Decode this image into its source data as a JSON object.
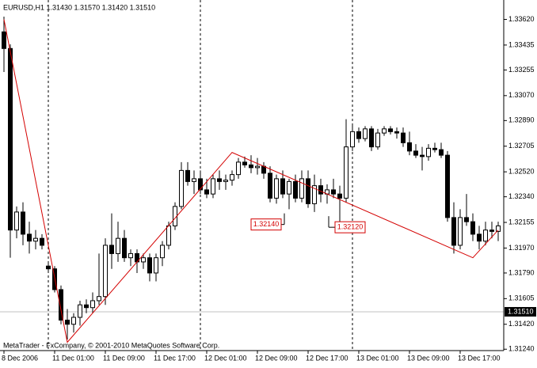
{
  "chart_data": {
    "type": "candlestick",
    "title": "EURUSD,H1  1.31430 1.31570 1.31420 1.31510",
    "footer": "MetaTrader - FxCompany, © 2001-2010 MetaQuotes Software Corp.",
    "categories": [
      "8 Dec 2006",
      null,
      null,
      null,
      null,
      null,
      null,
      null,
      "11 Dec 01:00",
      null,
      null,
      null,
      null,
      null,
      null,
      null,
      "11 Dec 09:00",
      null,
      null,
      null,
      null,
      null,
      null,
      null,
      "11 Dec 17:00",
      null,
      null,
      null,
      null,
      null,
      null,
      null,
      "12 Dec 01:00",
      null,
      null,
      null,
      null,
      null,
      null,
      null,
      "12 Dec 09:00",
      null,
      null,
      null,
      null,
      null,
      null,
      null,
      "12 Dec 17:00",
      null,
      null,
      null,
      null,
      null,
      null,
      null,
      "13 Dec 01:00",
      null,
      null,
      null,
      null,
      null,
      null,
      null,
      "13 Dec 09:00",
      null,
      null,
      null,
      null,
      null,
      null,
      null,
      "13 Dec 17:00",
      null,
      null,
      null,
      null,
      null,
      null
    ],
    "open": [
      1.3353,
      1.3341,
      1.321,
      1.3223,
      1.3207,
      1.3202,
      1.3204,
      1.3184,
      1.3182,
      1.3167,
      1.3145,
      1.3142,
      1.3147,
      1.3156,
      1.3154,
      1.3159,
      1.3162,
      1.3199,
      1.3193,
      1.3204,
      1.319,
      1.3193,
      1.3187,
      1.319,
      1.3179,
      1.319,
      1.3199,
      1.3213,
      1.3227,
      1.3253,
      1.3245,
      1.3247,
      1.3239,
      1.3236,
      1.3247,
      1.3245,
      1.3246,
      1.325,
      1.3259,
      1.3257,
      1.3255,
      1.3256,
      1.3251,
      1.3233,
      1.3247,
      1.3236,
      1.3245,
      1.3233,
      1.3247,
      1.3229,
      1.3242,
      1.3236,
      1.3239,
      1.3236,
      1.3233,
      1.327,
      1.3281,
      1.3276,
      1.3283,
      1.327,
      1.328,
      1.3283,
      1.3281,
      1.328,
      1.3273,
      1.3267,
      1.3264,
      1.3263,
      1.3269,
      1.3268,
      1.3264,
      1.3219,
      1.3199,
      1.3219,
      1.3216,
      1.3207,
      1.3202,
      1.321,
      1.3209
    ],
    "high": [
      1.3364,
      1.3344,
      1.3227,
      1.323,
      1.3216,
      1.321,
      1.3207,
      1.3187,
      1.3184,
      1.317,
      1.3153,
      1.315,
      1.3159,
      1.316,
      1.3165,
      1.3193,
      1.3204,
      1.3222,
      1.3216,
      1.321,
      1.3196,
      1.3196,
      1.3193,
      1.3193,
      1.3193,
      1.3202,
      1.3216,
      1.323,
      1.3259,
      1.3259,
      1.3253,
      1.3253,
      1.3247,
      1.325,
      1.3253,
      1.325,
      1.3253,
      1.3262,
      1.3263,
      1.3264,
      1.3262,
      1.3259,
      1.3256,
      1.325,
      1.3253,
      1.3247,
      1.325,
      1.3253,
      1.3253,
      1.325,
      1.3247,
      1.3243,
      1.3247,
      1.3242,
      1.329,
      1.3287,
      1.3284,
      1.3285,
      1.3285,
      1.3283,
      1.3285,
      1.3285,
      1.3284,
      1.3284,
      1.3281,
      1.3272,
      1.327,
      1.3272,
      1.3273,
      1.3273,
      1.3267,
      1.323,
      1.3225,
      1.3236,
      1.3222,
      1.3213,
      1.3216,
      1.3216,
      1.3216
    ],
    "low": [
      1.3324,
      1.319,
      1.3204,
      1.3199,
      1.3193,
      1.3196,
      1.3196,
      1.3179,
      1.3165,
      1.3142,
      1.3131,
      1.3136,
      1.3141,
      1.315,
      1.315,
      1.3156,
      1.3156,
      1.3182,
      1.3187,
      1.3187,
      1.3184,
      1.3179,
      1.3182,
      1.3173,
      1.3173,
      1.3184,
      1.3196,
      1.321,
      1.3225,
      1.3242,
      1.3236,
      1.3236,
      1.3233,
      1.3233,
      1.3239,
      1.3239,
      1.3242,
      1.3247,
      1.3255,
      1.3251,
      1.325,
      1.3247,
      1.323,
      1.3229,
      1.3233,
      1.3225,
      1.323,
      1.323,
      1.3226,
      1.3223,
      1.323,
      1.3229,
      1.3233,
      1.321,
      1.323,
      1.3267,
      1.3273,
      1.3274,
      1.3267,
      1.3268,
      1.3278,
      1.3279,
      1.3276,
      1.327,
      1.3264,
      1.3262,
      1.3253,
      1.326,
      1.3266,
      1.3262,
      1.3216,
      1.3193,
      1.3196,
      1.3213,
      1.3202,
      1.3196,
      1.3199,
      1.3204,
      1.3202
    ],
    "close": [
      1.3341,
      1.321,
      1.3223,
      1.3207,
      1.3202,
      1.3204,
      1.3199,
      1.3182,
      1.3167,
      1.3145,
      1.3142,
      1.3147,
      1.3156,
      1.3154,
      1.3159,
      1.3162,
      1.3199,
      1.3193,
      1.3204,
      1.319,
      1.3193,
      1.3187,
      1.319,
      1.3179,
      1.319,
      1.3199,
      1.3213,
      1.3227,
      1.3253,
      1.3245,
      1.3247,
      1.3239,
      1.3236,
      1.3247,
      1.3245,
      1.3246,
      1.325,
      1.3259,
      1.3257,
      1.3255,
      1.3256,
      1.3251,
      1.3233,
      1.3247,
      1.3236,
      1.3245,
      1.3233,
      1.3247,
      1.3229,
      1.3242,
      1.3236,
      1.3239,
      1.3236,
      1.3233,
      1.327,
      1.3281,
      1.3276,
      1.3283,
      1.327,
      1.328,
      1.3283,
      1.3281,
      1.328,
      1.3273,
      1.3267,
      1.3264,
      1.3263,
      1.3269,
      1.3268,
      1.3264,
      1.3219,
      1.3199,
      1.3219,
      1.3216,
      1.3207,
      1.3202,
      1.321,
      1.3209,
      1.3213
    ],
    "ylim": [
      1.3123,
      1.3376
    ],
    "yticks": [
      {
        "value": 1.3362,
        "label": "1.33620"
      },
      {
        "value": 1.33435,
        "label": "1.33435"
      },
      {
        "value": 1.33255,
        "label": "1.33255"
      },
      {
        "value": 1.3307,
        "label": "1.33070"
      },
      {
        "value": 1.3289,
        "label": "1.32890"
      },
      {
        "value": 1.32705,
        "label": "1.32705"
      },
      {
        "value": 1.3252,
        "label": "1.32520"
      },
      {
        "value": 1.3234,
        "label": "1.32340"
      },
      {
        "value": 1.32155,
        "label": "1.32155"
      },
      {
        "value": 1.3197,
        "label": "1.31970"
      },
      {
        "value": 1.3179,
        "label": "1.31790"
      },
      {
        "value": 1.31605,
        "label": "1.31605"
      },
      {
        "value": 1.3142,
        "label": "1.31420"
      },
      {
        "value": 1.3124,
        "label": "1.31240"
      }
    ],
    "bid_line": {
      "value": 1.3151,
      "label": "1.31510"
    },
    "zigzag": {
      "color": "#d40000",
      "indices": [
        0,
        10,
        36,
        74,
        78
      ],
      "values": [
        1.3362,
        1.3129,
        1.3266,
        1.319,
        1.321
      ]
    },
    "annotations": [
      {
        "index": 44,
        "value": 1.3214,
        "label": "1.32140"
      },
      {
        "index": 51,
        "value": 1.3212,
        "label": "1.32120"
      }
    ],
    "bull_color": "#ffffff",
    "bear_color": "#000000"
  }
}
